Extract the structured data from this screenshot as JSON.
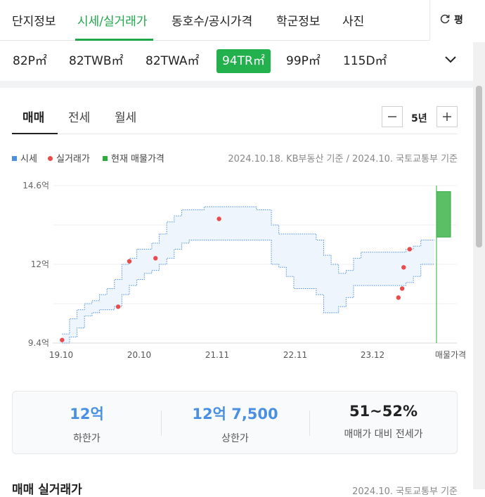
{
  "top_tabs": [
    {
      "label": "단지정보"
    },
    {
      "label": "시세/실거래가"
    },
    {
      "label": "동호수/공시가격"
    },
    {
      "label": "학군정보"
    },
    {
      "label": "사진"
    }
  ],
  "pyeong_label": "평",
  "area_types": [
    {
      "label": "82P㎡"
    },
    {
      "label": "82TWB㎡"
    },
    {
      "label": "82TWA㎡"
    },
    {
      "label": "94TR㎡"
    },
    {
      "label": "99P㎡"
    },
    {
      "label": "115D㎡"
    }
  ],
  "sub_tabs": [
    {
      "label": "매매"
    },
    {
      "label": "전세"
    },
    {
      "label": "월세"
    }
  ],
  "period": {
    "value": "5년"
  },
  "legend": [
    {
      "label": "시세",
      "color": "#4a90e2"
    },
    {
      "label": "실거래가",
      "color": "#e84c4c"
    },
    {
      "label": "현재 매물가격",
      "color": "#2faa3c"
    }
  ],
  "source": "2024.10.18. KB부동산 기준 / 2024.10. 국토교통부 기준",
  "chart_data": {
    "type": "area",
    "x_tick_labels": [
      "19.10",
      "20.10",
      "21.11",
      "22.11",
      "23.12",
      "매물가격"
    ],
    "y_tick_labels": [
      "14.6억",
      "12억",
      "9.4억"
    ],
    "ylim": [
      9.4,
      14.6
    ],
    "units": "억",
    "series": [
      {
        "name": "시세",
        "type": "range",
        "x": [
          2019.85,
          2019.95,
          2020.05,
          2020.15,
          2020.25,
          2020.35,
          2020.45,
          2020.55,
          2020.65,
          2020.75,
          2020.85,
          2020.95,
          2021.05,
          2021.15,
          2021.25,
          2021.35,
          2021.45,
          2021.55,
          2021.65,
          2021.75,
          2021.85,
          2021.95,
          2022.05,
          2022.15,
          2022.25,
          2022.35,
          2022.45,
          2022.55,
          2022.65,
          2022.75,
          2022.85,
          2022.95,
          2023.05,
          2023.15,
          2023.25,
          2023.35,
          2023.45,
          2023.55,
          2023.65,
          2023.75,
          2023.85,
          2023.95,
          2024.05,
          2024.15,
          2024.25,
          2024.35,
          2024.45,
          2024.55,
          2024.65,
          2024.75
        ],
        "high": [
          9.7,
          10.2,
          10.5,
          10.7,
          10.8,
          11.0,
          11.2,
          11.5,
          12.0,
          12.2,
          12.5,
          12.5,
          12.7,
          13.0,
          13.4,
          13.6,
          13.8,
          13.8,
          13.8,
          13.9,
          13.9,
          13.9,
          13.9,
          13.9,
          13.9,
          13.9,
          13.8,
          13.8,
          13.3,
          13.0,
          13.0,
          13.0,
          13.0,
          13.0,
          12.8,
          12.3,
          12.0,
          11.7,
          11.8,
          12.2,
          12.4,
          12.4,
          12.4,
          12.4,
          12.4,
          12.4,
          12.5,
          12.6,
          12.8,
          12.8
        ],
        "low": [
          9.4,
          9.6,
          9.9,
          10.3,
          10.4,
          10.5,
          10.5,
          10.6,
          11.0,
          11.3,
          11.5,
          11.7,
          11.8,
          12.0,
          12.2,
          12.5,
          12.7,
          12.8,
          12.8,
          12.8,
          12.8,
          12.8,
          12.8,
          12.8,
          12.8,
          12.8,
          12.8,
          12.8,
          12.0,
          11.9,
          11.6,
          11.2,
          11.2,
          11.2,
          11.0,
          10.4,
          10.4,
          10.6,
          10.9,
          11.3,
          11.3,
          11.3,
          11.3,
          11.3,
          11.3,
          11.3,
          11.4,
          11.6,
          12.0,
          12.0
        ]
      },
      {
        "name": "실거래가",
        "type": "scatter",
        "x": [
          2019.85,
          2020.6,
          2020.75,
          2021.1,
          2021.95,
          2024.35,
          2024.4,
          2024.42,
          2024.5
        ],
        "y": [
          9.5,
          10.6,
          12.1,
          12.2,
          13.5,
          10.9,
          11.2,
          11.9,
          12.5
        ]
      },
      {
        "name": "현재 매물가격",
        "type": "range_bar",
        "high": 14.4,
        "low": 12.9
      }
    ]
  },
  "summary": [
    {
      "value": "12억",
      "label": "하한가"
    },
    {
      "value": "12억 7,500",
      "label": "상한가"
    },
    {
      "value": "51~52%",
      "label": "매매가 대비 전세가"
    }
  ],
  "bottom": {
    "title": "매매 실거래가",
    "source": "2024.10. 국토교통부 기준"
  }
}
